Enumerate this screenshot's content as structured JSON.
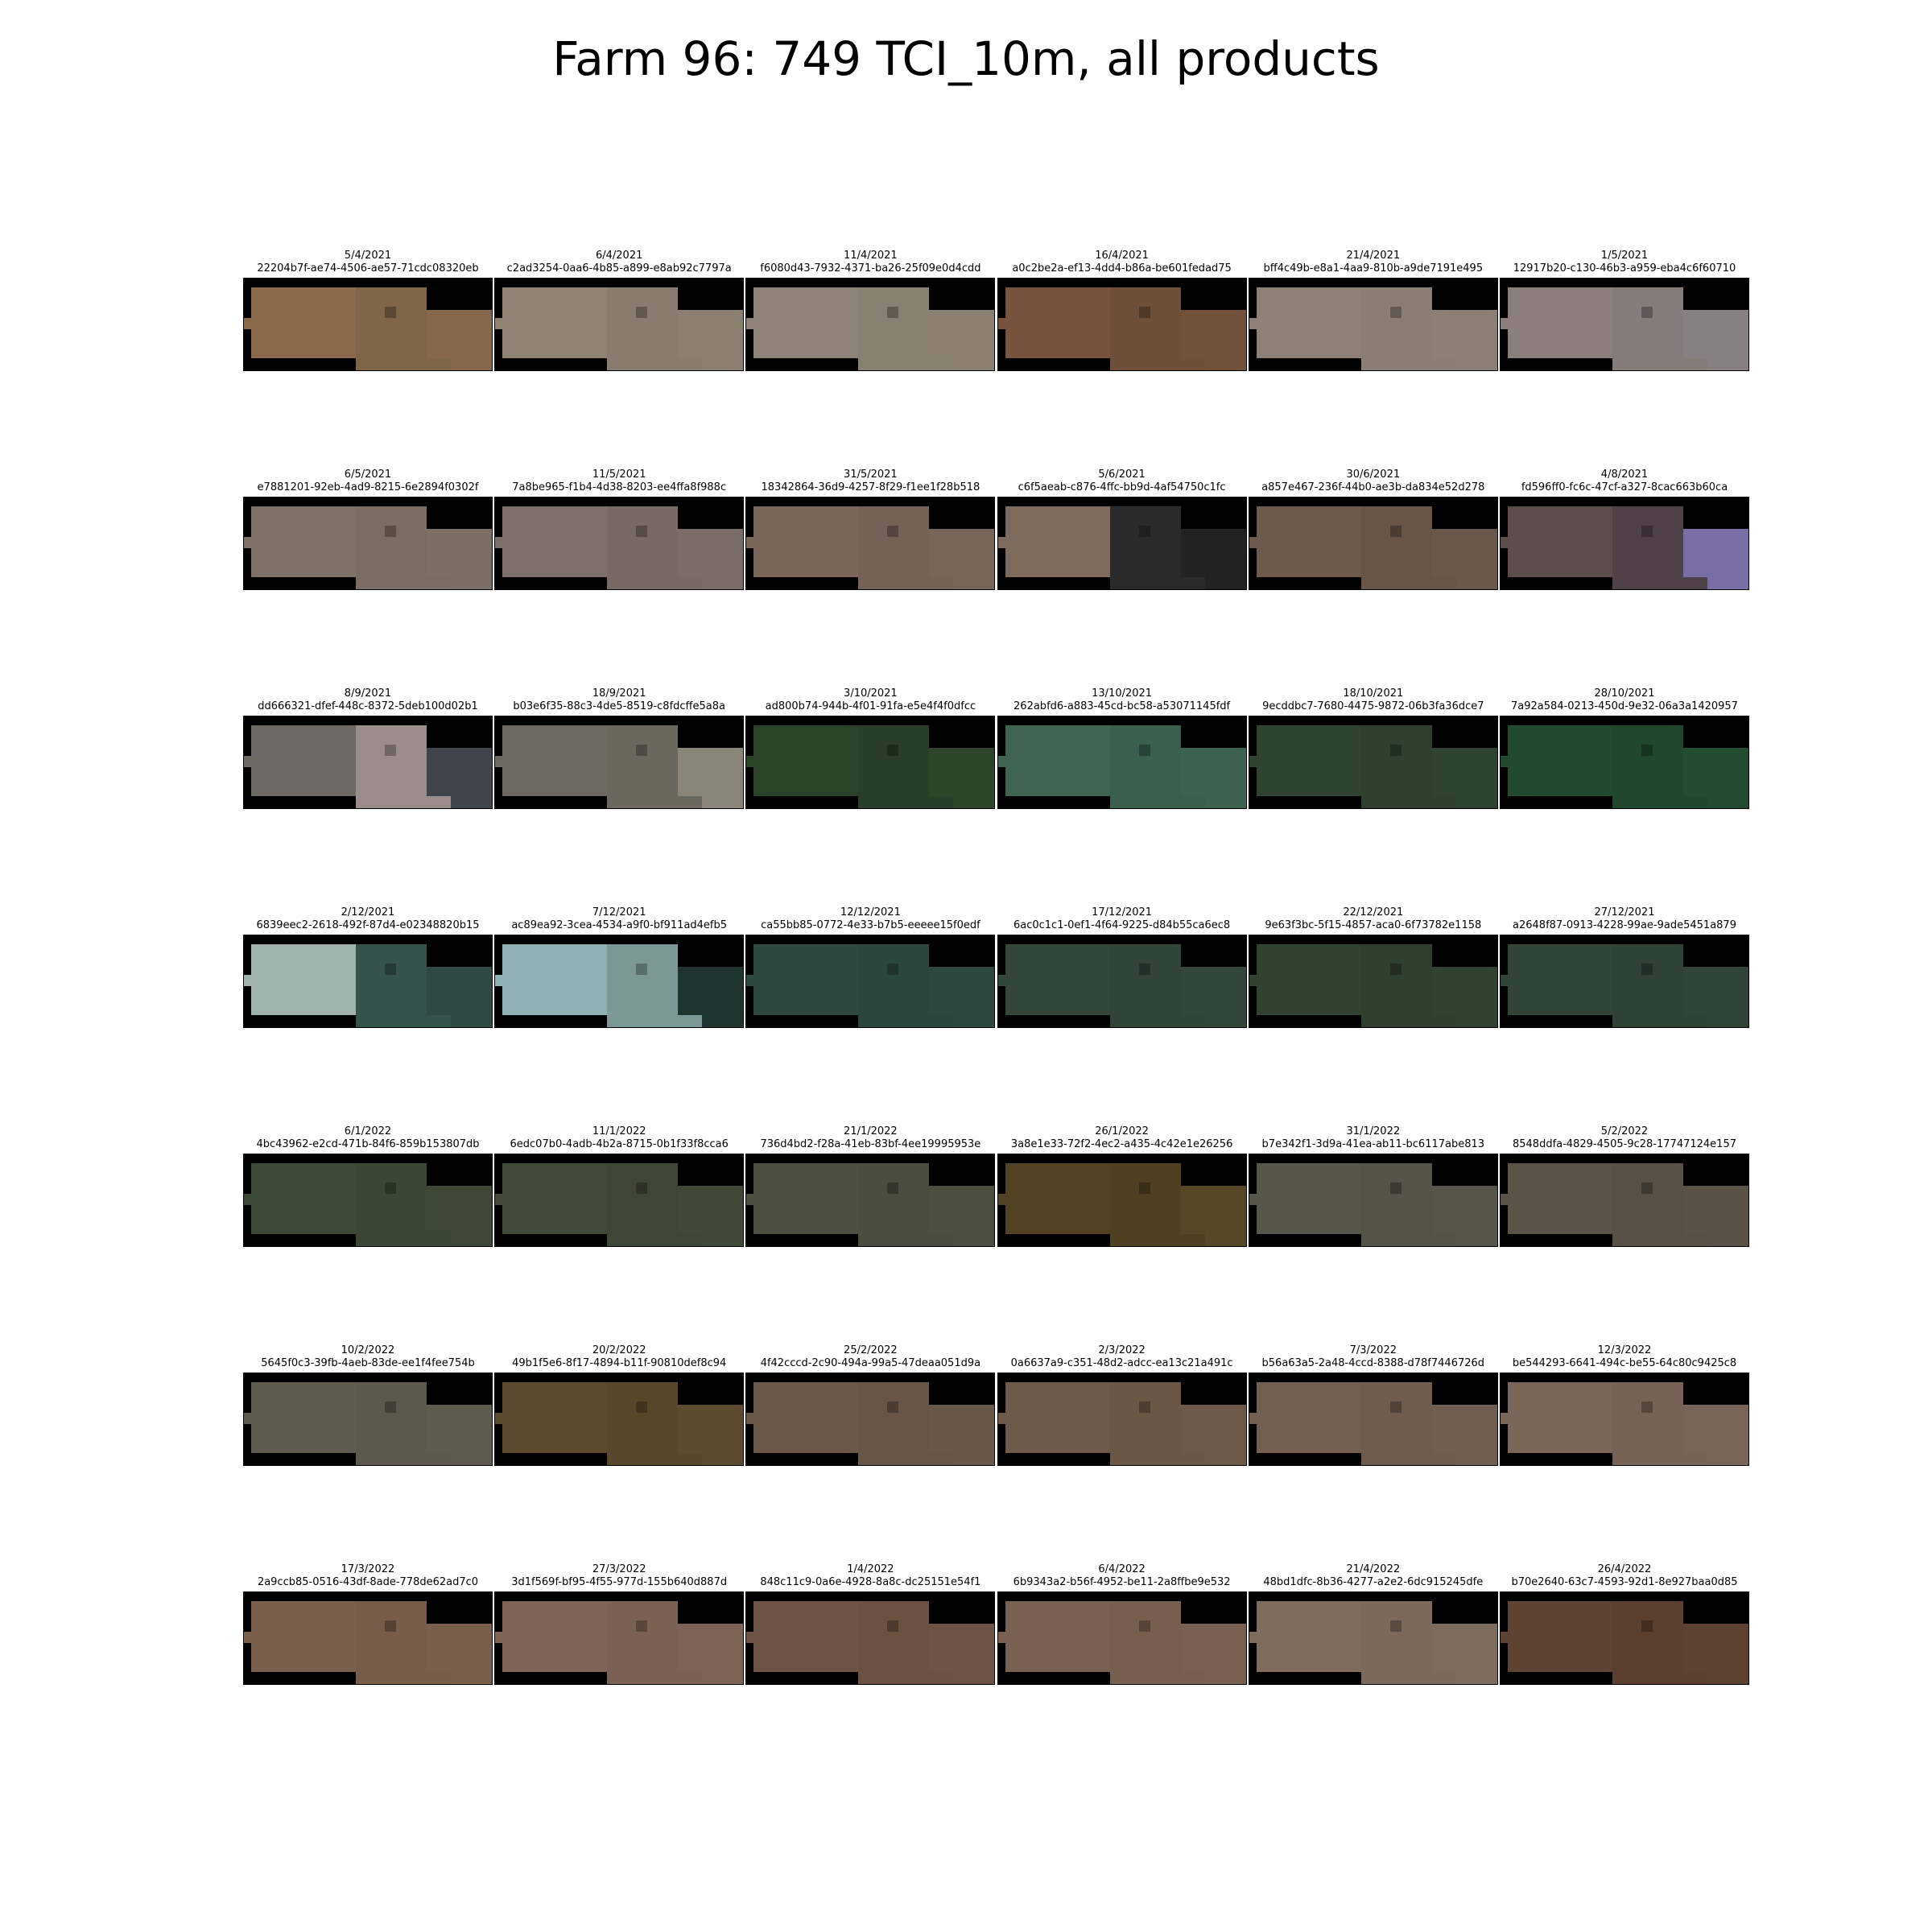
{
  "title": "Farm 96: 749 TCI_10m, all products",
  "tiles": [
    {
      "date": "5/4/2021",
      "id": "22204b7f-ae74-4506-ae57-71cdc08320eb",
      "colors": [
        "#8a6a4a",
        "#7f6547",
        "#86694c"
      ]
    },
    {
      "date": "6/4/2021",
      "id": "c2ad3254-0aa6-4b85-a899-e8ab92c7797a",
      "colors": [
        "#8e8272",
        "#877c6d",
        "#8b806f"
      ]
    },
    {
      "date": "11/4/2021",
      "id": "f6080d43-7932-4371-ba26-25f09e0d4cdd",
      "colors": [
        "#8d8276",
        "#888070",
        "#8a8173"
      ]
    },
    {
      "date": "16/4/2021",
      "id": "a0c2be2a-ef13-4dd4-b86a-be601fedad75",
      "colors": [
        "#77533d",
        "#6e4f3a",
        "#72513b"
      ]
    },
    {
      "date": "21/4/2021",
      "id": "bff4c49b-e8a1-4aa9-810b-a9de7191e495",
      "colors": [
        "#8e8076",
        "#8a7d73",
        "#8c7f74"
      ]
    },
    {
      "date": "1/5/2021",
      "id": "12917b20-c130-46b3-a959-eba4c6f60710",
      "colors": [
        "#8a7f7c",
        "#857b78",
        "#888080"
      ]
    },
    {
      "date": "6/5/2021",
      "id": "e7881201-92eb-4ad9-8215-6e2894f0302f",
      "colors": [
        "#7f7066",
        "#7a6c62",
        "#7d6e64"
      ]
    },
    {
      "date": "11/5/2021",
      "id": "7a8be965-f1b4-4d38-8203-ee4ffa8f988c",
      "colors": [
        "#7c6e68",
        "#776a64",
        "#7a6c66"
      ]
    },
    {
      "date": "31/5/2021",
      "id": "18342864-36d9-4257-8f29-f1ee1f28b518",
      "colors": [
        "#7b675a",
        "#756256",
        "#786558"
      ]
    },
    {
      "date": "5/6/2021",
      "id": "c6f5aeab-c876-4ffc-bb9d-4af54750c1fc",
      "colors": [
        "#7d6b5e",
        "#2b2a2a",
        "#232323"
      ]
    },
    {
      "date": "30/6/2021",
      "id": "a857e467-236f-44b0-ae3b-da834e52d278",
      "colors": [
        "#6e5a4d",
        "#685548",
        "#6c584b"
      ]
    },
    {
      "date": "4/8/2021",
      "id": "fd596ff0-fc6c-47cf-a327-8cac663b60ca",
      "colors": [
        "#5c4d4a",
        "#4e4147",
        "#7a6ea6"
      ]
    },
    {
      "date": "8/9/2021",
      "id": "dd666321-dfef-448c-8372-5deb100d02b1",
      "colors": [
        "#6d6a63",
        "#9a8c88",
        "#3e434c"
      ]
    },
    {
      "date": "18/9/2021",
      "id": "b03e6f35-88c3-4de5-8519-c8fdcffe5a8a",
      "colors": [
        "#6c6a60",
        "#6a685d",
        "#8b8578"
      ]
    },
    {
      "date": "3/10/2021",
      "id": "ad800b74-944b-4f01-91fa-e5e4f4f0dfcc",
      "colors": [
        "#2b4329",
        "#283e26",
        "#2d4629"
      ]
    },
    {
      "date": "13/10/2021",
      "id": "262abfd6-a883-45cd-bc58-a53071145fdf",
      "colors": [
        "#3f6452",
        "#3a5f4d",
        "#3d624f"
      ]
    },
    {
      "date": "18/10/2021",
      "id": "9ecddbc7-7680-4475-9872-06b3fa36dce7",
      "colors": [
        "#2f4430",
        "#2c402d",
        "#2e432f"
      ]
    },
    {
      "date": "28/10/2021",
      "id": "7a92a584-0213-450d-9e32-06a3a1420957",
      "colors": [
        "#224a2e",
        "#20462b",
        "#234b2f"
      ]
    },
    {
      "date": "2/12/2021",
      "id": "6839eec2-2618-492f-87d4-e02348820b15",
      "colors": [
        "#a0b3ac",
        "#35534a",
        "#2f4a42"
      ]
    },
    {
      "date": "7/12/2021",
      "id": "ac89ea92-3cea-4534-a9f0-bf911ad4efb5",
      "colors": [
        "#8fb0b4",
        "#7c9896",
        "#1f342f"
      ]
    },
    {
      "date": "12/12/2021",
      "id": "ca55bb85-0772-4e33-b7b5-eeeee15f0edf",
      "colors": [
        "#2e4a40",
        "#2b463c",
        "#2d483e"
      ]
    },
    {
      "date": "17/12/2021",
      "id": "6ac0c1c1-0ef1-4f64-9225-d84b55ca6ec8",
      "colors": [
        "#33483a",
        "#304537",
        "#324739"
      ]
    },
    {
      "date": "22/12/2021",
      "id": "9e63f3bc-5f15-4857-aca0-6f73782e1158",
      "colors": [
        "#304230",
        "#2d3f2d",
        "#2f412f"
      ]
    },
    {
      "date": "27/12/2021",
      "id": "a2648f87-0913-4228-99ae-9ade5451a879",
      "colors": [
        "#304538",
        "#2d4235",
        "#2f4437"
      ]
    },
    {
      "date": "6/1/2022",
      "id": "4bc43962-e2cd-471b-84f6-859b153807db",
      "colors": [
        "#3d4a36",
        "#3a4733",
        "#3c4835"
      ]
    },
    {
      "date": "11/1/2022",
      "id": "6edc07b0-4adb-4b2a-8715-0b1f33f8cca6",
      "colors": [
        "#414a37",
        "#3e4734",
        "#404936"
      ]
    },
    {
      "date": "21/1/2022",
      "id": "736d4bd2-f28a-41eb-83bf-4ee19995953e",
      "colors": [
        "#4d5040",
        "#4a4d3d",
        "#4c4f3f"
      ]
    },
    {
      "date": "26/1/2022",
      "id": "3a8e1e33-72f2-4ec2-a435-4c42e1e26256",
      "colors": [
        "#514223",
        "#4e4020",
        "#554826"
      ]
    },
    {
      "date": "31/1/2022",
      "id": "b7e342f1-3d9a-41ea-ab11-bc6117abe813",
      "colors": [
        "#57564a",
        "#545347",
        "#565549"
      ]
    },
    {
      "date": "5/2/2022",
      "id": "8548ddfa-4829-4505-9c28-17747124e157",
      "colors": [
        "#5b5446",
        "#585143",
        "#5a5345"
      ]
    },
    {
      "date": "10/2/2022",
      "id": "5645f0c3-39fb-4aeb-83de-ee1f4fee754b",
      "colors": [
        "#5f5c4f",
        "#5c594c",
        "#5e5b4e"
      ]
    },
    {
      "date": "20/2/2022",
      "id": "49b1f5e6-8f17-4894-b11f-90810def8c94",
      "colors": [
        "#5c4a2f",
        "#59472c",
        "#5d4b30"
      ]
    },
    {
      "date": "25/2/2022",
      "id": "4f42cccd-2c90-494a-99a5-47deaa051d9a",
      "colors": [
        "#6a5848",
        "#675545",
        "#695747"
      ]
    },
    {
      "date": "2/3/2022",
      "id": "0a6637a9-c351-48d2-adcc-ea13c21a491c",
      "colors": [
        "#6d5a49",
        "#6a5746",
        "#6c5948"
      ]
    },
    {
      "date": "7/3/2022",
      "id": "b56a63a5-2a48-4ccd-8388-d78f7446726d",
      "colors": [
        "#725f51",
        "#6f5c4e",
        "#715e50"
      ]
    },
    {
      "date": "12/3/2022",
      "id": "be544293-6641-494c-be55-64c80c9425c8",
      "colors": [
        "#7a6658",
        "#776355",
        "#796557"
      ]
    },
    {
      "date": "17/3/2022",
      "id": "2a9ccb85-0516-43df-8ade-778de62ad7c0",
      "colors": [
        "#7a5f4d",
        "#775c4a",
        "#795e4c"
      ]
    },
    {
      "date": "27/3/2022",
      "id": "3d1f569f-bf95-4f55-977d-155b640d887d",
      "colors": [
        "#7d6454",
        "#7a6151",
        "#7c6353"
      ]
    },
    {
      "date": "1/4/2022",
      "id": "848c11c9-0a6e-4928-8a8c-dc25151e54f1",
      "colors": [
        "#6e5444",
        "#6b5141",
        "#6d5343"
      ]
    },
    {
      "date": "6/4/2022",
      "id": "6b9343a2-b56f-4952-be11-2a8ffbe9e532",
      "colors": [
        "#7a6252",
        "#775f4f",
        "#796151"
      ]
    },
    {
      "date": "21/4/2022",
      "id": "48bd1dfc-8b36-4277-a2e2-6dc915245dfe",
      "colors": [
        "#7e6c5c",
        "#7b6959",
        "#7d6b5b"
      ]
    },
    {
      "date": "26/4/2022",
      "id": "b70e2640-63c7-4593-92d1-8e927baa0d85",
      "colors": [
        "#5e4232",
        "#5b3f2f",
        "#5d4131"
      ]
    }
  ]
}
